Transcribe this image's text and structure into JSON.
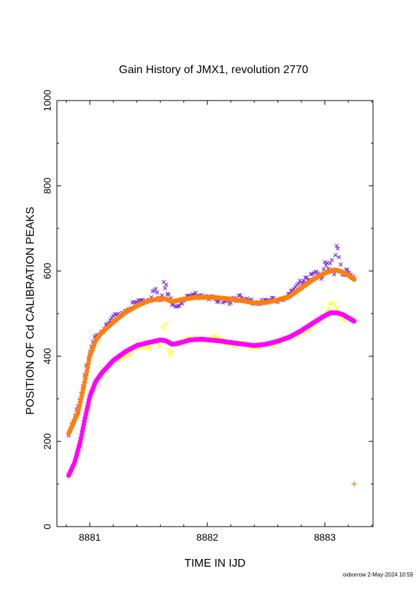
{
  "chart_data": {
    "type": "scatter",
    "title": "Gain History of JMX1, revolution 2770",
    "xlabel": "TIME IN IJD",
    "ylabel": "POSITION OF Cd CALIBRATION PEAKS",
    "xlim": [
      8880.72,
      8883.41
    ],
    "ylim": [
      0,
      1000
    ],
    "x_ticks": [
      "8881",
      "8882",
      "8883"
    ],
    "x_tick_values": [
      8881,
      8882,
      8883
    ],
    "y_ticks": [
      "0",
      "200",
      "400",
      "600",
      "800",
      "1000"
    ],
    "y_tick_values": [
      0,
      200,
      400,
      600,
      800,
      1000
    ],
    "grid": false,
    "legend": "none",
    "series": [
      {
        "marker": "x",
        "color": "#7b2fd8",
        "x": [
          8880.82,
          8880.86,
          8880.9,
          8880.94,
          8880.97,
          8881.0,
          8881.04,
          8881.1,
          8881.2,
          8881.3,
          8881.4,
          8881.5,
          8881.56,
          8881.6,
          8881.63,
          8881.65,
          8881.67,
          8881.7,
          8881.75,
          8881.85,
          8881.95,
          8882.05,
          8882.2,
          8882.28,
          8882.4,
          8882.5,
          8882.6,
          8882.7,
          8882.8,
          8882.88,
          8882.93,
          8882.97,
          8883.0,
          8883.03,
          8883.06,
          8883.08,
          8883.1,
          8883.12,
          8883.15,
          8883.18,
          8883.22,
          8883.25
        ],
        "y": [
          212,
          245,
          285,
          330,
          372,
          405,
          440,
          458,
          490,
          510,
          525,
          535,
          553,
          527,
          568,
          562,
          542,
          526,
          521,
          540,
          545,
          535,
          528,
          540,
          524,
          530,
          532,
          545,
          575,
          586,
          595,
          580,
          618,
          612,
          620,
          597,
          665,
          638,
          588,
          600,
          591,
          585
        ]
      },
      {
        "marker": "dot",
        "color": "#ff7f0e",
        "x": [
          8880.82,
          8880.9,
          8880.95,
          8881.0,
          8881.05,
          8881.1,
          8881.2,
          8881.3,
          8881.4,
          8881.5,
          8881.6,
          8881.65,
          8881.7,
          8881.8,
          8881.9,
          8882.0,
          8882.1,
          8882.2,
          8882.3,
          8882.4,
          8882.5,
          8882.6,
          8882.7,
          8882.8,
          8882.9,
          8883.0,
          8883.05,
          8883.1,
          8883.15,
          8883.2,
          8883.25
        ],
        "y": [
          218,
          268,
          330,
          400,
          437,
          455,
          480,
          502,
          518,
          530,
          535,
          534,
          528,
          534,
          538,
          538,
          537,
          534,
          530,
          525,
          526,
          532,
          540,
          560,
          580,
          595,
          600,
          602,
          597,
          590,
          580
        ]
      },
      {
        "marker": "x",
        "color": "#ffff33",
        "x": [
          8880.82,
          8880.87,
          8880.92,
          8880.96,
          8881.0,
          8881.05,
          8881.1,
          8881.2,
          8881.3,
          8881.4,
          8881.5,
          8881.56,
          8881.6,
          8881.62,
          8881.65,
          8881.67,
          8881.69,
          8881.71,
          8881.75,
          8881.85,
          8881.95,
          8882.1,
          8882.25,
          8882.4,
          8882.55,
          8882.7,
          8882.82,
          8882.9,
          8882.95,
          8883.0,
          8883.04,
          8883.08,
          8883.12,
          8883.17,
          8883.22
        ],
        "y": [
          112,
          150,
          200,
          255,
          310,
          345,
          360,
          385,
          405,
          415,
          425,
          430,
          421,
          465,
          470,
          412,
          405,
          425,
          432,
          438,
          440,
          440,
          428,
          422,
          428,
          445,
          455,
          475,
          478,
          490,
          515,
          528,
          502,
          485,
          488
        ]
      },
      {
        "marker": "dot",
        "color": "#ff00ff",
        "x": [
          8880.82,
          8880.87,
          8880.92,
          8880.96,
          8881.0,
          8881.05,
          8881.1,
          8881.2,
          8881.3,
          8881.4,
          8881.5,
          8881.6,
          8881.65,
          8881.7,
          8881.75,
          8881.85,
          8881.95,
          8882.1,
          8882.25,
          8882.4,
          8882.5,
          8882.6,
          8882.7,
          8882.8,
          8882.9,
          8883.0,
          8883.05,
          8883.1,
          8883.15,
          8883.2,
          8883.25
        ],
        "y": [
          120,
          150,
          200,
          255,
          305,
          340,
          360,
          390,
          410,
          425,
          432,
          438,
          436,
          428,
          430,
          438,
          440,
          436,
          430,
          425,
          428,
          435,
          445,
          460,
          478,
          495,
          502,
          502,
          498,
          490,
          482
        ]
      },
      {
        "marker": "plus",
        "color": "#ff7f0e",
        "x": [
          8883.25
        ],
        "y": [
          100
        ]
      }
    ]
  },
  "footer": {
    "credit": "oxborrow  2-May-2024 10:59"
  }
}
